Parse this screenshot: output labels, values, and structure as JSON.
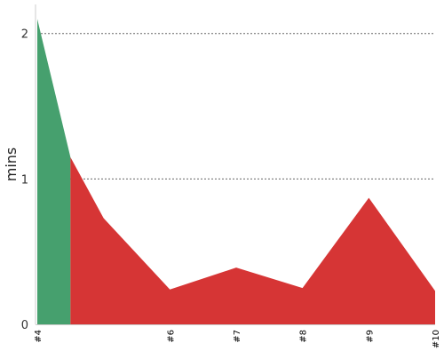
{
  "chart_data": {
    "type": "area",
    "ylabel": "mins",
    "xlabel": "",
    "title": "",
    "x": [
      4,
      4.5,
      5,
      6,
      7,
      8,
      9,
      10
    ],
    "y": [
      2.1,
      1.15,
      0.73,
      0.24,
      0.39,
      0.25,
      0.87,
      0.23
    ],
    "green_until_x": 4.5,
    "xticks": [
      "#4",
      "#6",
      "#7",
      "#8",
      "#9",
      "#10"
    ],
    "xtick_values": [
      4,
      6,
      7,
      8,
      9,
      10
    ],
    "yticks": [
      "0",
      "1",
      "2"
    ],
    "ytick_values": [
      0,
      1,
      2
    ],
    "xlim": [
      4,
      10
    ],
    "ylim": [
      0,
      2.2
    ],
    "grid": "horizontal dotted",
    "colors": {
      "first": "#46a06e",
      "rest": "#d63535"
    }
  }
}
